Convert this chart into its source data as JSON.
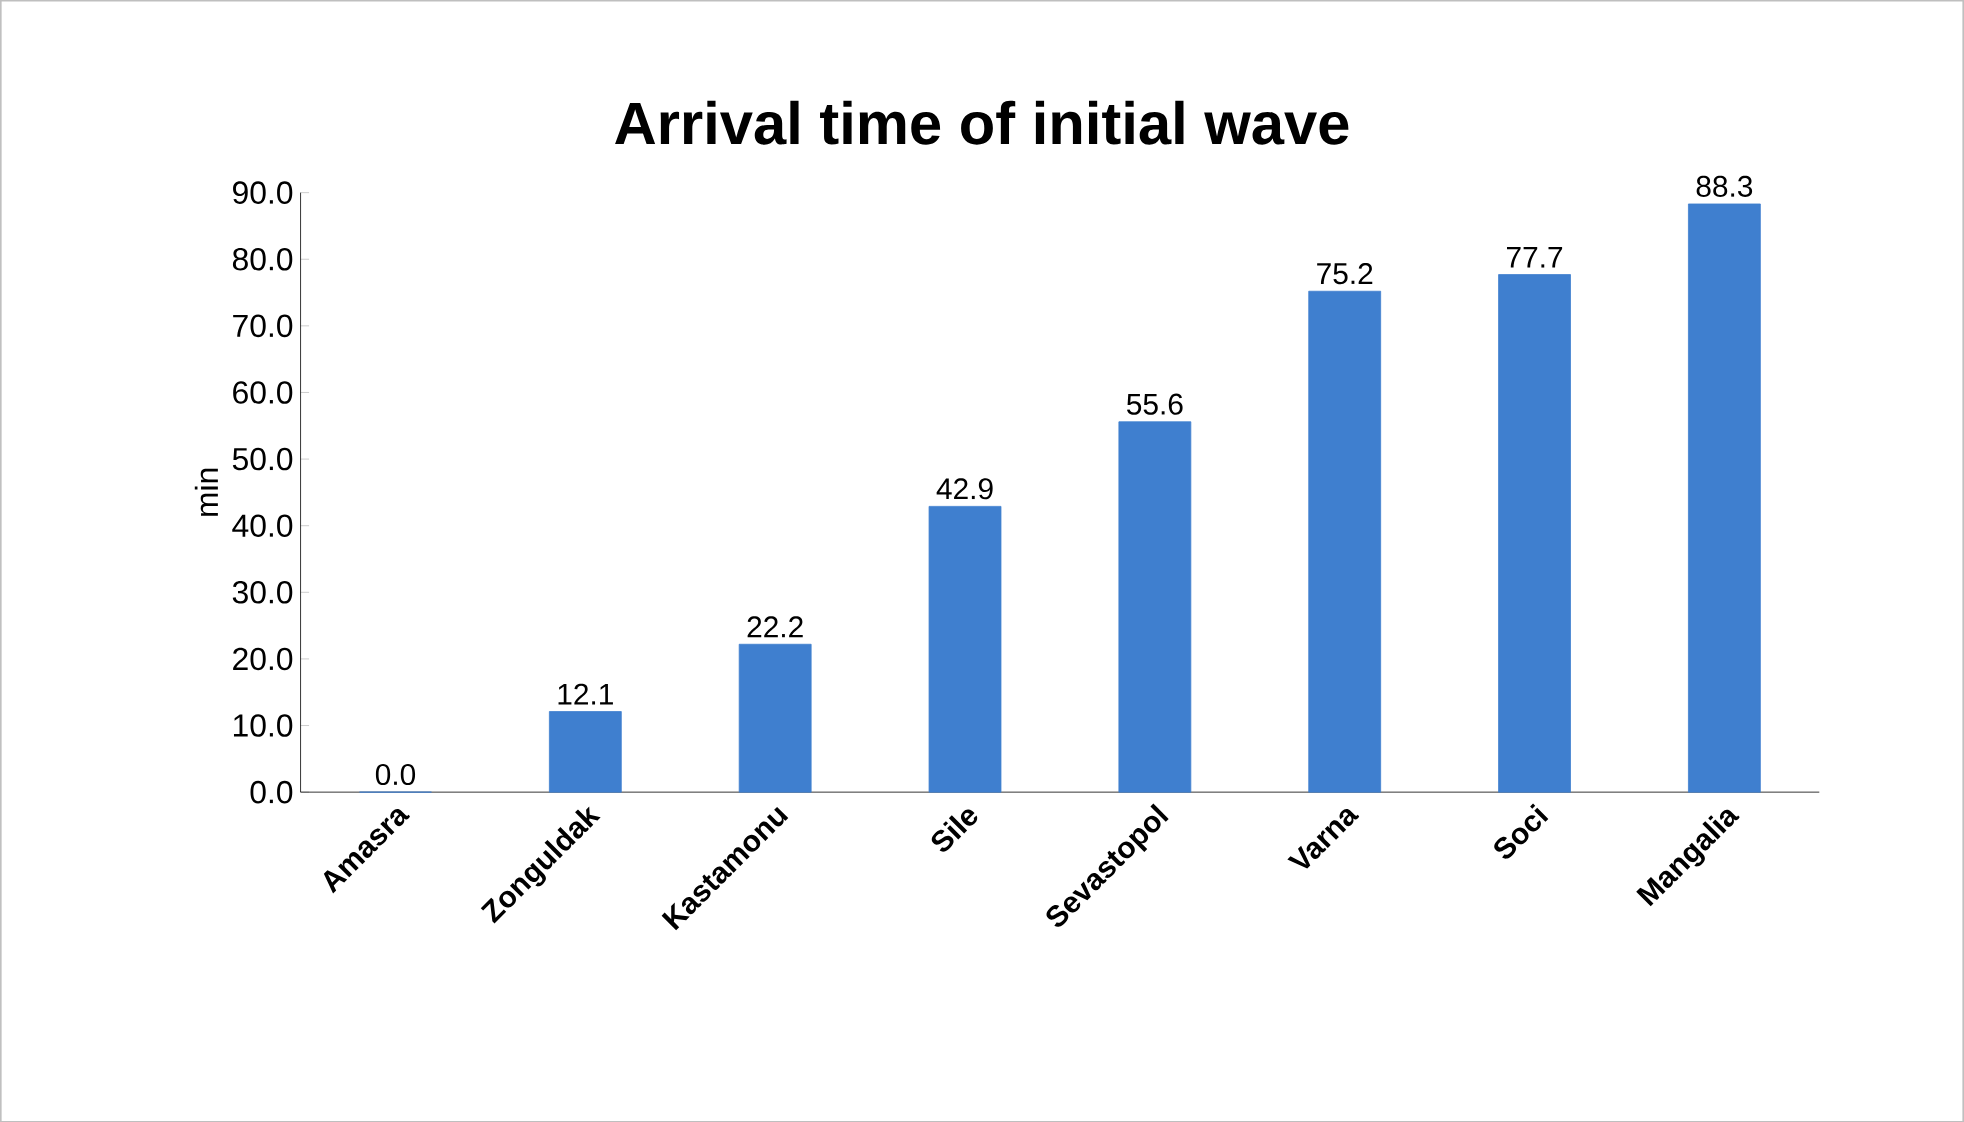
{
  "chart_data": {
    "type": "bar",
    "title": "Arrival time of initial wave",
    "ylabel": "min",
    "categories": [
      "Amasra",
      "Zonguldak",
      "Kastamonu",
      "Sile",
      "Sevastopol",
      "Varna",
      "Soci",
      "Mangalia"
    ],
    "values": [
      0.0,
      12.1,
      22.2,
      42.9,
      55.6,
      75.2,
      77.7,
      88.3
    ],
    "value_labels": [
      "0.0",
      "12.1",
      "22.2",
      "42.9",
      "55.6",
      "75.2",
      "77.7",
      "88.3"
    ],
    "color": "#3f7fcf",
    "ylim": [
      0,
      90
    ],
    "yticks": [
      {
        "value": 0,
        "label": "0.0"
      },
      {
        "value": 10,
        "label": "10.0"
      },
      {
        "value": 20,
        "label": "20.0"
      },
      {
        "value": 30,
        "label": "30.0"
      },
      {
        "value": 40,
        "label": "40.0"
      },
      {
        "value": 50,
        "label": "50.0"
      },
      {
        "value": 60,
        "label": "60.0"
      },
      {
        "value": 70,
        "label": "70.0"
      },
      {
        "value": 80,
        "label": "80.0"
      },
      {
        "value": 90,
        "label": "90.0"
      }
    ]
  }
}
